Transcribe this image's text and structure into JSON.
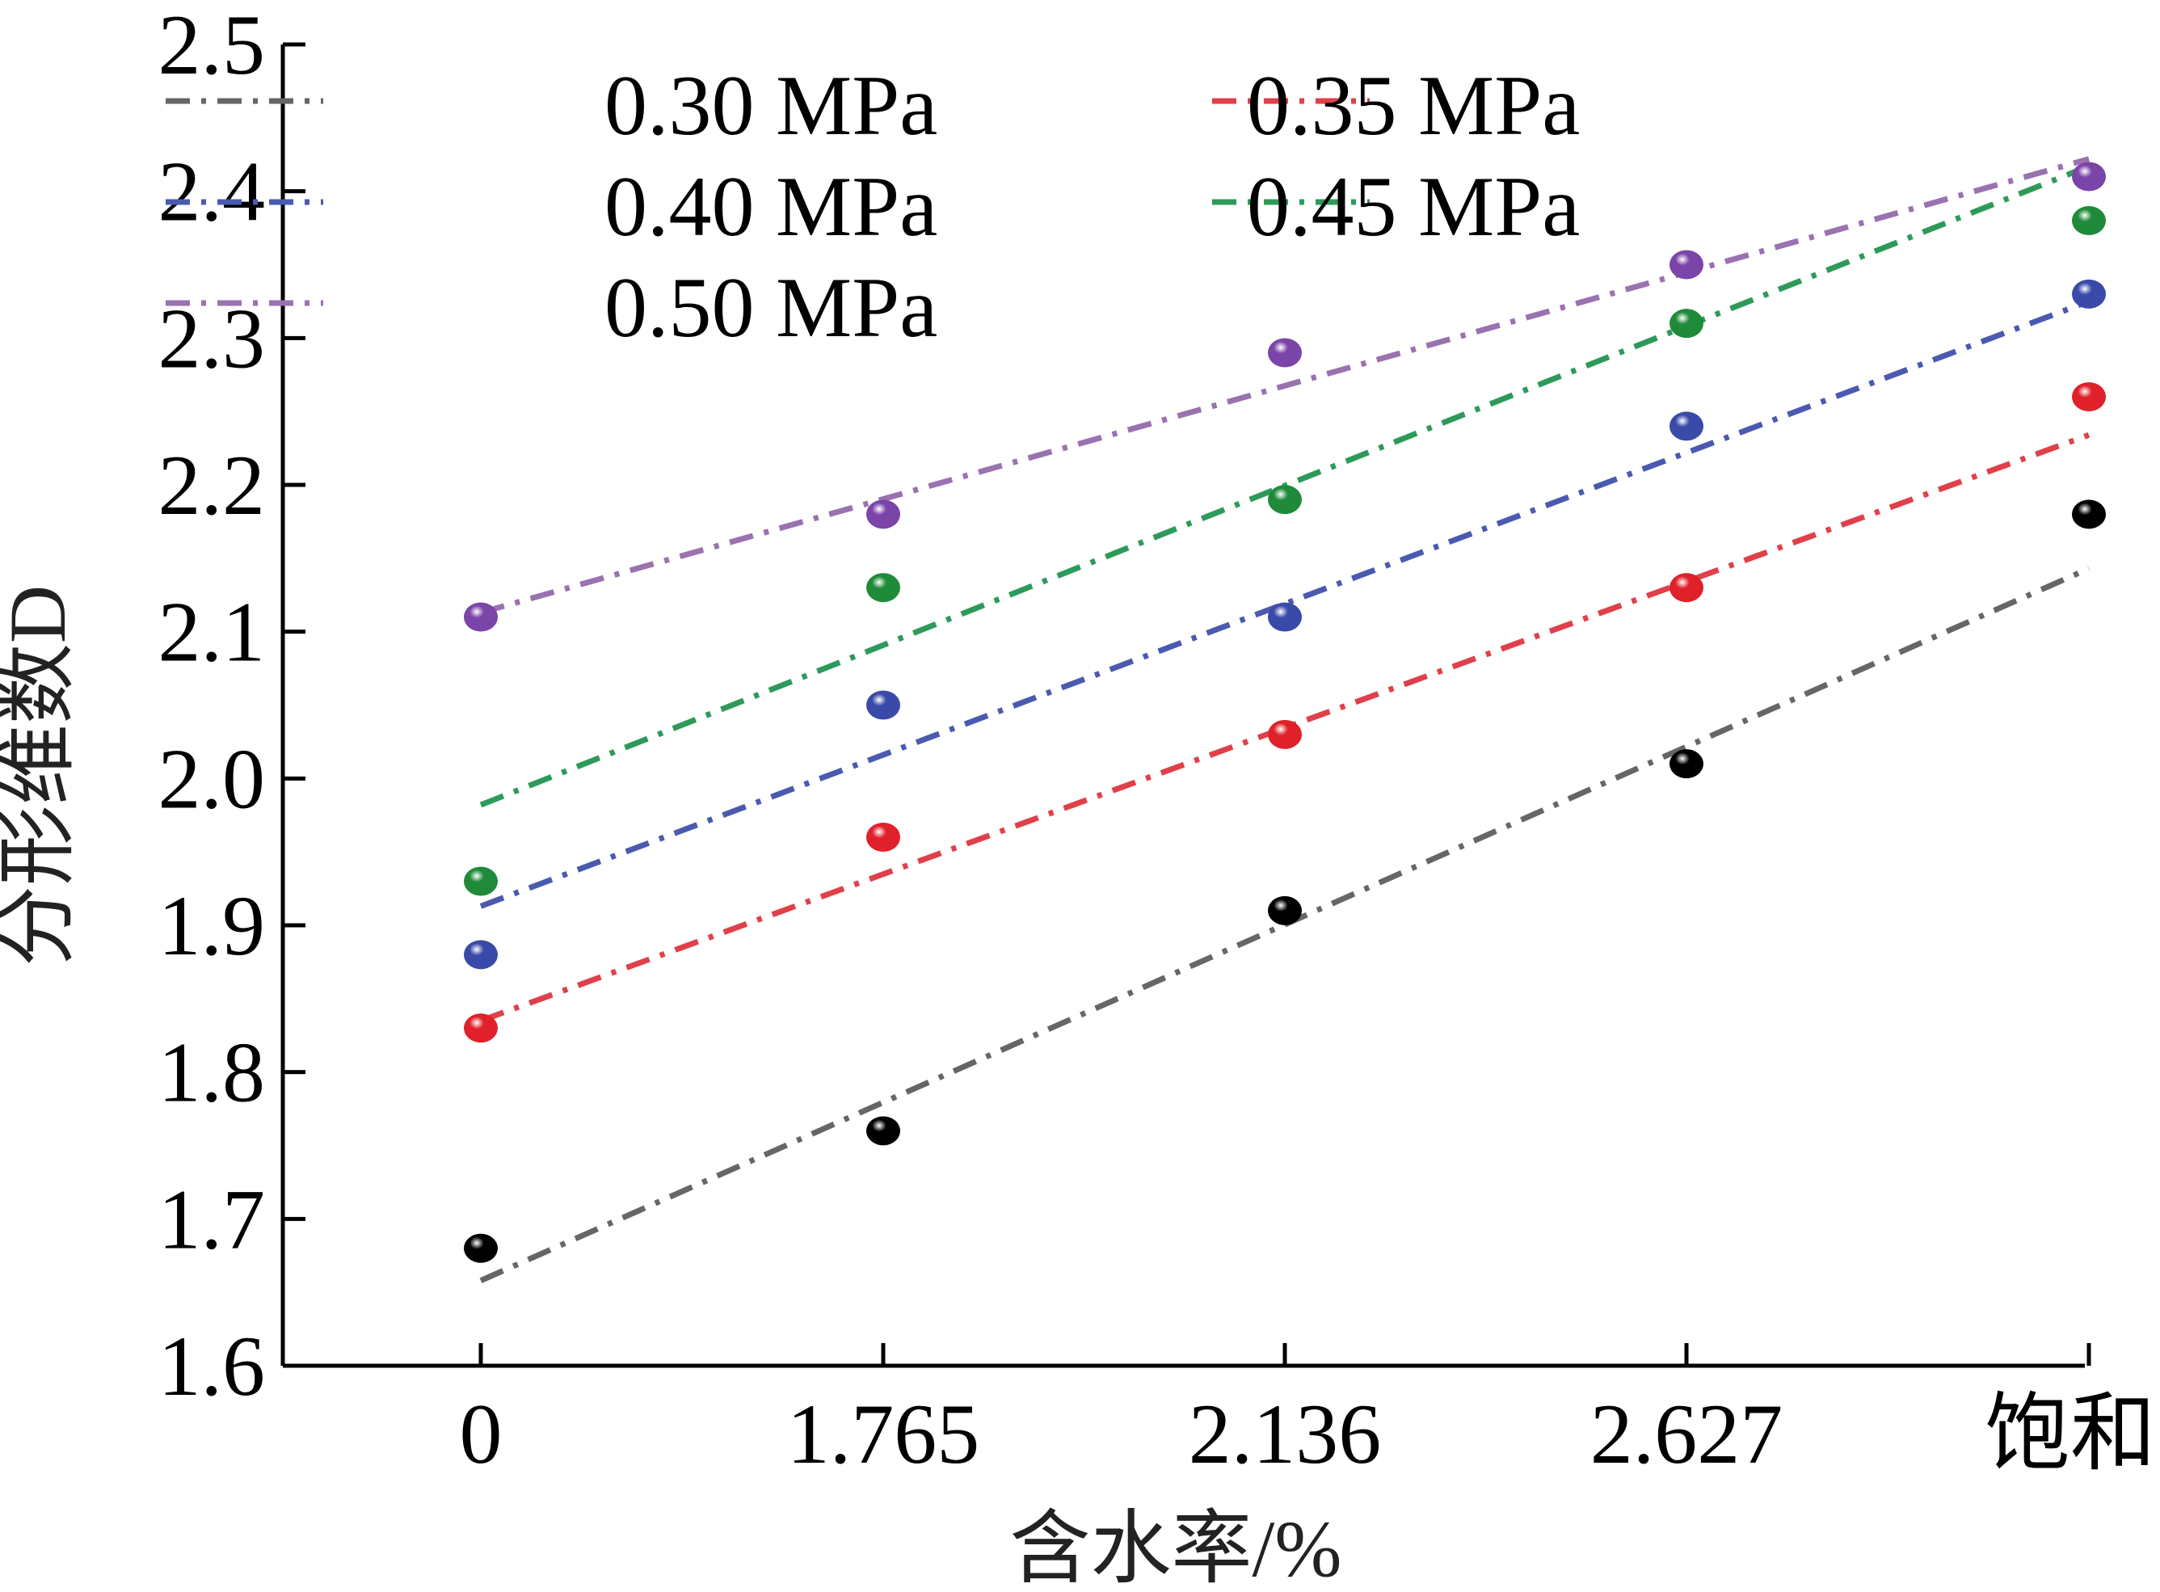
{
  "chart_data": {
    "type": "scatter",
    "title": "",
    "xlabel": "含水率/%",
    "ylabel": "分形维数D",
    "categories": [
      "0",
      "1.765",
      "2.136",
      "2.627",
      "饱和"
    ],
    "ylim": [
      1.6,
      2.5
    ],
    "yticks": [
      "1.6",
      "1.7",
      "1.8",
      "1.9",
      "2.0",
      "2.1",
      "2.2",
      "2.3",
      "2.4",
      "2.5"
    ],
    "grid": false,
    "legend_position": "top-left",
    "series": [
      {
        "name": "0.30 MPa",
        "color": "#000000",
        "line_color": "#666666",
        "values": [
          1.68,
          1.76,
          1.91,
          2.01,
          2.18
        ],
        "fit": [
          1.658,
          2.143
        ]
      },
      {
        "name": "0.35 MPa",
        "color": "#e0202a",
        "line_color": "#e0404a",
        "values": [
          1.83,
          1.96,
          2.03,
          2.13,
          2.26
        ],
        "fit": [
          1.835,
          2.234
        ]
      },
      {
        "name": "0.40 MPa",
        "color": "#3a4aa8",
        "line_color": "#4a5ab0",
        "values": [
          1.88,
          2.05,
          2.11,
          2.24,
          2.33
        ],
        "fit": [
          1.913,
          2.325
        ]
      },
      {
        "name": "0.45 MPa",
        "color": "#1f8a3a",
        "line_color": "#2e9a5a",
        "values": [
          1.93,
          2.13,
          2.19,
          2.31,
          2.38
        ],
        "fit": [
          1.982,
          2.417
        ]
      },
      {
        "name": "0.50 MPa",
        "color": "#7a44a8",
        "line_color": "#9a72b0",
        "values": [
          2.11,
          2.18,
          2.29,
          2.35,
          2.41
        ],
        "fit": [
          2.113,
          2.422
        ]
      }
    ]
  }
}
